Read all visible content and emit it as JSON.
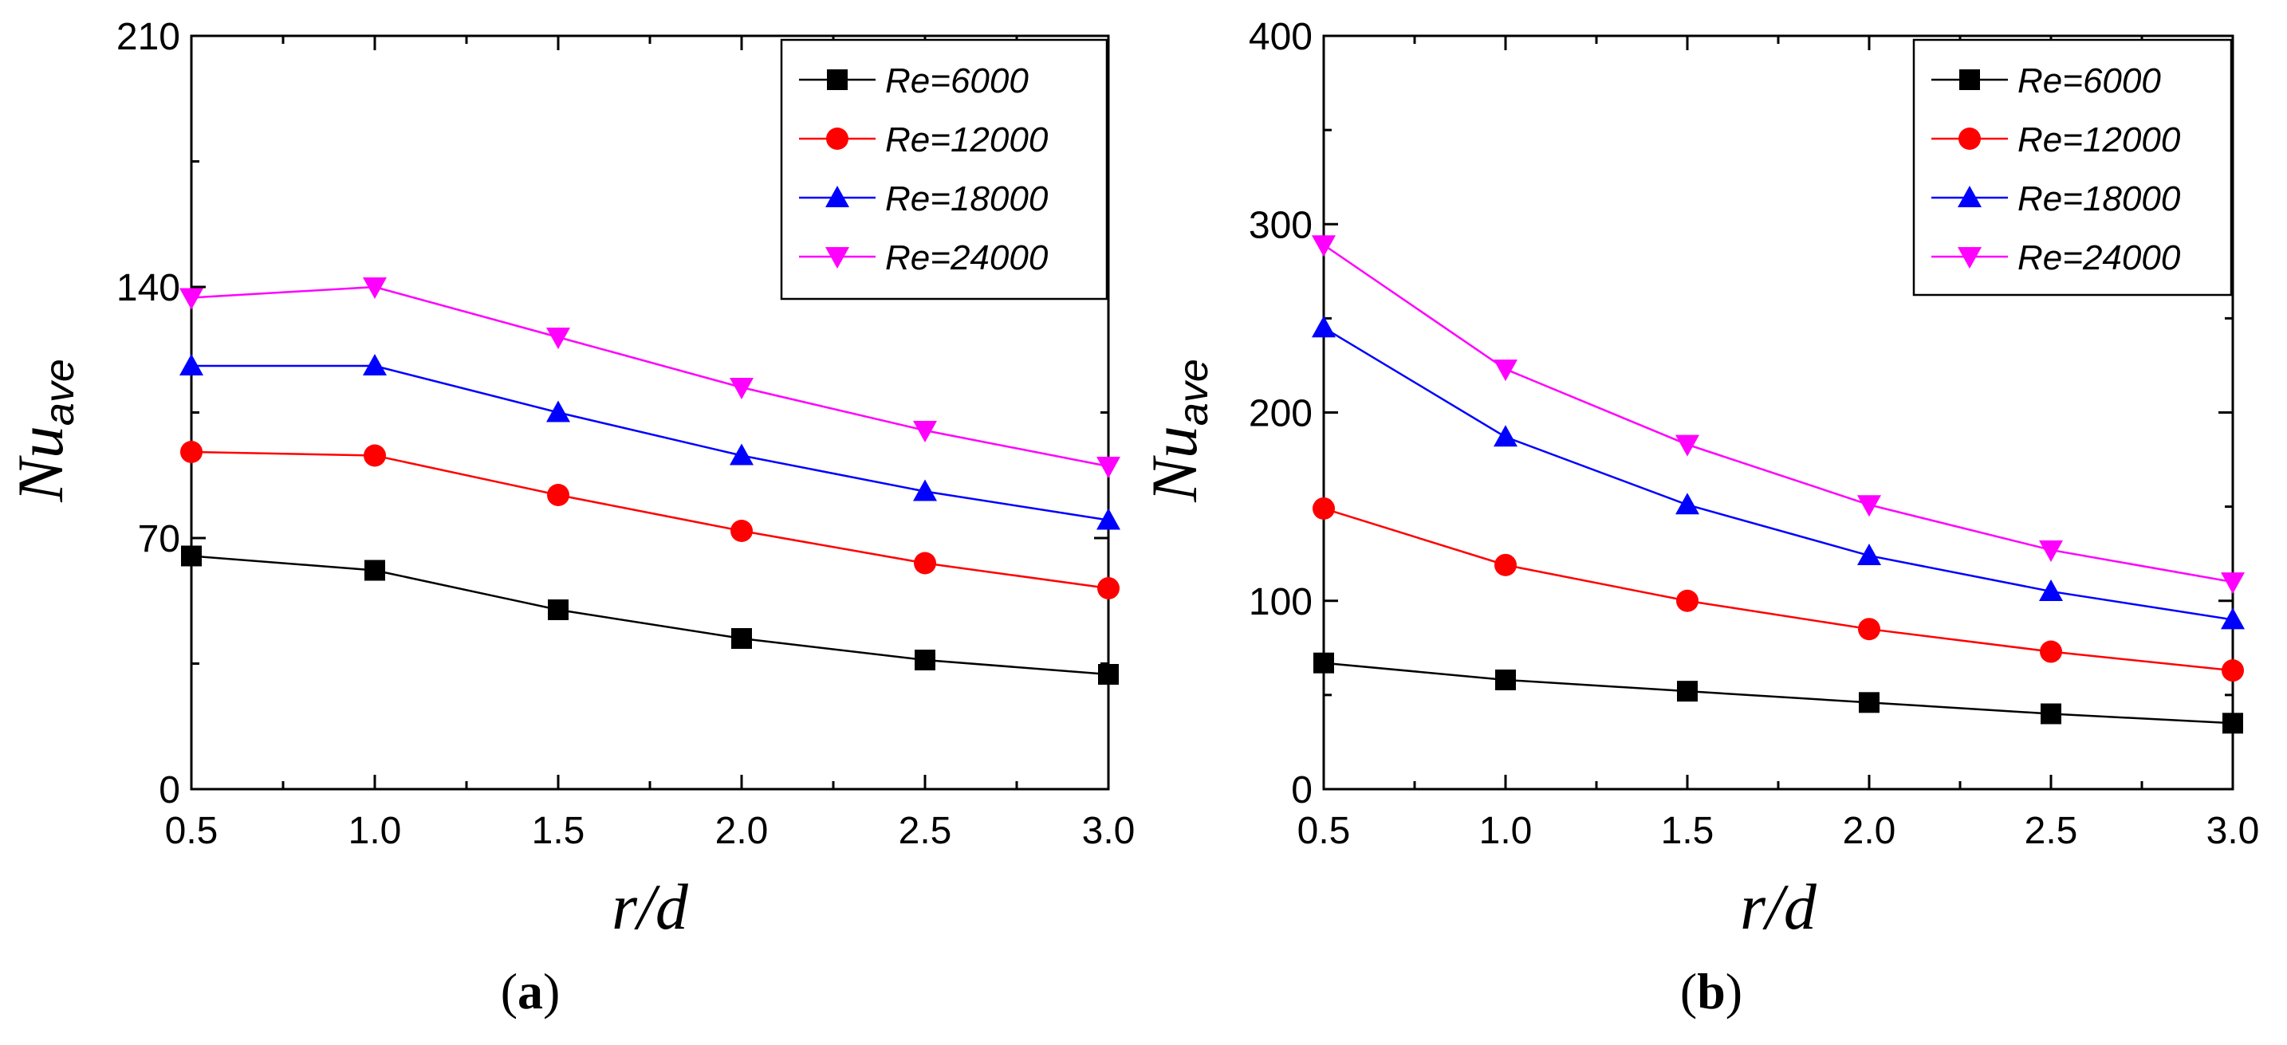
{
  "chart_data": [
    {
      "type": "line",
      "panel_label": "a",
      "x": [
        0.5,
        1.0,
        1.5,
        2.0,
        2.5,
        3.0
      ],
      "xticks": [
        "0.5",
        "1.0",
        "1.5",
        "2.0",
        "2.5",
        "3.0"
      ],
      "xlim": [
        0.5,
        3.0
      ],
      "ylim": [
        0,
        210
      ],
      "yticks": [
        0,
        70,
        140,
        210
      ],
      "ylabel_main": "Nu",
      "ylabel_sub": "ave",
      "xlabel": "r/d",
      "legend_position": "top-right",
      "series": [
        {
          "name": "Re=6000",
          "marker": "square",
          "color": "#000000",
          "values": [
            65,
            61,
            50,
            42,
            36,
            32
          ]
        },
        {
          "name": "Re=12000",
          "marker": "circle",
          "color": "#ff0000",
          "values": [
            94,
            93,
            82,
            72,
            63,
            56
          ]
        },
        {
          "name": "Re=18000",
          "marker": "triangle-up",
          "color": "#0000ff",
          "values": [
            118,
            118,
            105,
            93,
            83,
            75
          ]
        },
        {
          "name": "Re=24000",
          "marker": "triangle-down",
          "color": "#ff00ff",
          "values": [
            137,
            140,
            126,
            112,
            100,
            90
          ]
        }
      ]
    },
    {
      "type": "line",
      "panel_label": "b",
      "x": [
        0.5,
        1.0,
        1.5,
        2.0,
        2.5,
        3.0
      ],
      "xticks": [
        "0.5",
        "1.0",
        "1.5",
        "2.0",
        "2.5",
        "3.0"
      ],
      "xlim": [
        0.5,
        3.0
      ],
      "ylim": [
        0,
        400
      ],
      "yticks": [
        0,
        100,
        200,
        300,
        400
      ],
      "ylabel_main": "Nu",
      "ylabel_sub": "ave",
      "xlabel": "r/d",
      "legend_position": "top-right",
      "series": [
        {
          "name": "Re=6000",
          "marker": "square",
          "color": "#000000",
          "values": [
            67,
            58,
            52,
            46,
            40,
            35
          ]
        },
        {
          "name": "Re=12000",
          "marker": "circle",
          "color": "#ff0000",
          "values": [
            149,
            119,
            100,
            85,
            73,
            63
          ]
        },
        {
          "name": "Re=18000",
          "marker": "triangle-up",
          "color": "#0000ff",
          "values": [
            245,
            187,
            151,
            124,
            105,
            90
          ]
        },
        {
          "name": "Re=24000",
          "marker": "triangle-down",
          "color": "#ff00ff",
          "values": [
            289,
            223,
            183,
            151,
            127,
            110
          ]
        }
      ]
    }
  ],
  "captions": {
    "a": {
      "open": "(",
      "letter": "a",
      "close": ")"
    },
    "b": {
      "open": "(",
      "letter": "b",
      "close": ")"
    }
  }
}
